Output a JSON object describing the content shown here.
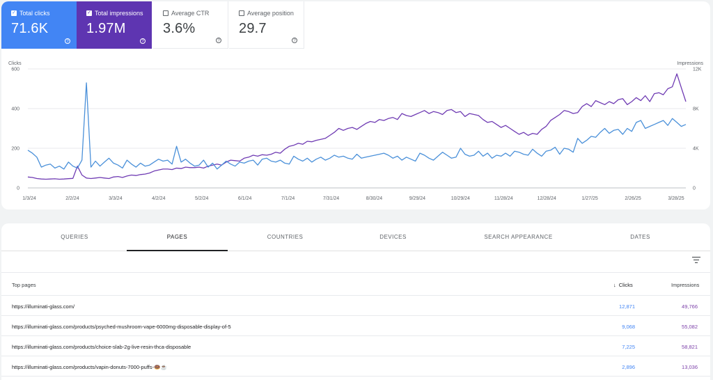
{
  "metrics": [
    {
      "label": "Total clicks",
      "value": "71.6K",
      "selected": true,
      "color": "#4285f4"
    },
    {
      "label": "Total impressions",
      "value": "1.97M",
      "selected": true,
      "color": "#5e35b1"
    },
    {
      "label": "Average CTR",
      "value": "3.6%",
      "selected": false
    },
    {
      "label": "Average position",
      "value": "29.7",
      "selected": false
    }
  ],
  "chart_data": {
    "type": "line",
    "ylabel": "Clicks",
    "y2label": "Impressions",
    "ylim": [
      0,
      600
    ],
    "y2lim": [
      0,
      12000
    ],
    "yticks": [
      "0",
      "200",
      "400",
      "600"
    ],
    "y2ticks": [
      "0",
      "4K",
      "8K",
      "12K"
    ],
    "xticks": [
      "1/3/24",
      "2/2/24",
      "3/3/24",
      "4/2/24",
      "5/2/24",
      "6/1/24",
      "7/1/24",
      "7/31/24",
      "8/30/24",
      "9/29/24",
      "10/29/24",
      "11/28/24",
      "12/28/24",
      "1/27/25",
      "2/26/25",
      "3/28/25"
    ],
    "grid": true,
    "series": [
      {
        "name": "Clicks",
        "color": "#4a90d9",
        "values": [
          190,
          175,
          155,
          105,
          115,
          120,
          100,
          110,
          95,
          130,
          110,
          100,
          140,
          530,
          105,
          135,
          110,
          130,
          150,
          125,
          115,
          100,
          140,
          120,
          105,
          125,
          110,
          115,
          130,
          145,
          135,
          140,
          120,
          210,
          130,
          145,
          125,
          110,
          115,
          140,
          105,
          125,
          95,
          115,
          135,
          120,
          110,
          130,
          125,
          135,
          140,
          115,
          145,
          150,
          135,
          130,
          140,
          125,
          120,
          160,
          145,
          135,
          150,
          130,
          145,
          155,
          140,
          150,
          165,
          155,
          160,
          150,
          145,
          170,
          150,
          155,
          160,
          165,
          170,
          175,
          165,
          150,
          160,
          140,
          155,
          145,
          135,
          175,
          165,
          150,
          140,
          160,
          180,
          165,
          150,
          155,
          200,
          170,
          160,
          165,
          185,
          160,
          175,
          150,
          165,
          160,
          175,
          160,
          185,
          180,
          170,
          165,
          195,
          175,
          160,
          185,
          190,
          205,
          170,
          200,
          195,
          180,
          250,
          225,
          240,
          260,
          255,
          280,
          300,
          275,
          290,
          295,
          270,
          300,
          285,
          330,
          340,
          300,
          310,
          320,
          330,
          340,
          315,
          350,
          330,
          310,
          320
        ]
      },
      {
        "name": "Impressions",
        "color": "#6f3bb3",
        "values": [
          1100,
          1050,
          950,
          900,
          880,
          900,
          920,
          880,
          900,
          930,
          960,
          2200,
          1300,
          1000,
          950,
          1000,
          1050,
          1000,
          950,
          1100,
          1150,
          1050,
          1200,
          1300,
          1250,
          1350,
          1400,
          1500,
          1700,
          1800,
          1900,
          1900,
          1850,
          2000,
          1950,
          2100,
          2050,
          2050,
          2100,
          2000,
          2200,
          2300,
          2400,
          2300,
          2600,
          2800,
          2750,
          2700,
          3000,
          3100,
          3300,
          3200,
          3350,
          3300,
          3400,
          3600,
          3500,
          3900,
          4200,
          4300,
          4500,
          4400,
          4700,
          4650,
          4800,
          4900,
          5000,
          5300,
          5600,
          6000,
          5800,
          6000,
          6100,
          5900,
          6200,
          6500,
          6700,
          6600,
          6900,
          6800,
          7000,
          7100,
          6900,
          7500,
          7300,
          7200,
          7400,
          7600,
          7800,
          7500,
          7700,
          7600,
          7400,
          7800,
          7900,
          7600,
          7700,
          7200,
          7500,
          7400,
          7300,
          6900,
          6600,
          6700,
          6400,
          6100,
          6300,
          6000,
          5700,
          5400,
          5600,
          5300,
          5500,
          5400,
          5900,
          6200,
          6800,
          7100,
          7400,
          7800,
          7700,
          7500,
          7600,
          8200,
          8500,
          8200,
          8800,
          8600,
          8400,
          8700,
          8500,
          8900,
          9000,
          8400,
          8700,
          9100,
          8800,
          9300,
          8700,
          9500,
          9600,
          9400,
          10000,
          10200,
          11500,
          10100,
          8700
        ]
      }
    ]
  },
  "tabs": [
    "QUERIES",
    "PAGES",
    "COUNTRIES",
    "DEVICES",
    "SEARCH APPEARANCE",
    "DATES"
  ],
  "active_tab": "PAGES",
  "table": {
    "header_page": "Top pages",
    "header_clicks": "Clicks",
    "header_impressions": "Impressions",
    "rows": [
      {
        "url": "https://illuminati-glass.com/",
        "clicks": "12,871",
        "impressions": "49,766"
      },
      {
        "url": "https://illuminati-glass.com/products/psyched-mushroom-vape-6000mg-disposable-display-of-5",
        "clicks": "9,068",
        "impressions": "55,082"
      },
      {
        "url": "https://illuminati-glass.com/products/choice-slab-2g-live-resin-thca-disposable",
        "clicks": "7,225",
        "impressions": "58,821"
      },
      {
        "url": "https://illuminati-glass.com/products/vapin-donuts-7000-puffs-🍩☕",
        "clicks": "2,896",
        "impressions": "13,036"
      }
    ]
  }
}
